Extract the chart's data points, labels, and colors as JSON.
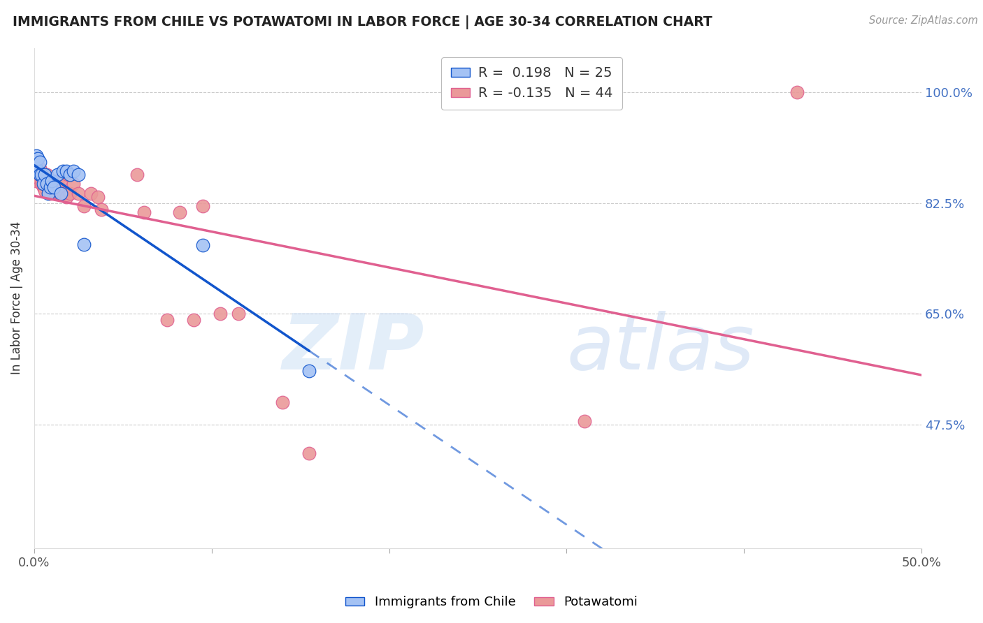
{
  "title": "IMMIGRANTS FROM CHILE VS POTAWATOMI IN LABOR FORCE | AGE 30-34 CORRELATION CHART",
  "source": "Source: ZipAtlas.com",
  "ylabel": "In Labor Force | Age 30-34",
  "xlim": [
    0.0,
    0.5
  ],
  "ylim": [
    0.28,
    1.07
  ],
  "r_chile": 0.198,
  "n_chile": 25,
  "r_potawatomi": -0.135,
  "n_potawatomi": 44,
  "chile_color": "#a4c2f4",
  "potawatomi_color": "#ea9999",
  "chile_line_color": "#1155cc",
  "potawatomi_line_color": "#e06090",
  "chile_scatter_x": [
    0.001,
    0.001,
    0.001,
    0.002,
    0.002,
    0.003,
    0.003,
    0.004,
    0.005,
    0.006,
    0.007,
    0.008,
    0.009,
    0.01,
    0.011,
    0.013,
    0.015,
    0.016,
    0.018,
    0.02,
    0.022,
    0.025,
    0.028,
    0.095,
    0.155
  ],
  "chile_scatter_y": [
    0.88,
    0.895,
    0.9,
    0.875,
    0.895,
    0.87,
    0.89,
    0.87,
    0.855,
    0.87,
    0.855,
    0.84,
    0.85,
    0.86,
    0.85,
    0.87,
    0.84,
    0.875,
    0.875,
    0.87,
    0.875,
    0.87,
    0.76,
    0.758,
    0.56
  ],
  "potawatomi_scatter_x": [
    0.001,
    0.001,
    0.001,
    0.002,
    0.002,
    0.003,
    0.003,
    0.004,
    0.004,
    0.005,
    0.005,
    0.006,
    0.006,
    0.007,
    0.008,
    0.009,
    0.01,
    0.011,
    0.012,
    0.013,
    0.014,
    0.015,
    0.016,
    0.018,
    0.019,
    0.02,
    0.022,
    0.025,
    0.028,
    0.032,
    0.036,
    0.038,
    0.058,
    0.062,
    0.075,
    0.082,
    0.09,
    0.095,
    0.105,
    0.115,
    0.14,
    0.155,
    0.31,
    0.43
  ],
  "potawatomi_scatter_y": [
    0.875,
    0.87,
    0.86,
    0.875,
    0.865,
    0.88,
    0.87,
    0.865,
    0.855,
    0.865,
    0.85,
    0.86,
    0.845,
    0.87,
    0.86,
    0.84,
    0.855,
    0.845,
    0.84,
    0.86,
    0.84,
    0.86,
    0.84,
    0.835,
    0.87,
    0.84,
    0.855,
    0.84,
    0.82,
    0.84,
    0.835,
    0.815,
    0.87,
    0.81,
    0.64,
    0.81,
    0.64,
    0.82,
    0.65,
    0.65,
    0.51,
    0.43,
    0.48,
    1.0
  ],
  "background_color": "#ffffff",
  "grid_color": "#cccccc",
  "yticks": [
    0.475,
    0.65,
    0.825,
    1.0
  ],
  "ytick_labels": [
    "47.5%",
    "65.0%",
    "82.5%",
    "100.0%"
  ],
  "xticks": [
    0.0,
    0.1,
    0.2,
    0.3,
    0.4,
    0.5
  ],
  "xtick_labels": [
    "0.0%",
    "",
    "",
    "",
    "",
    "50.0%"
  ]
}
